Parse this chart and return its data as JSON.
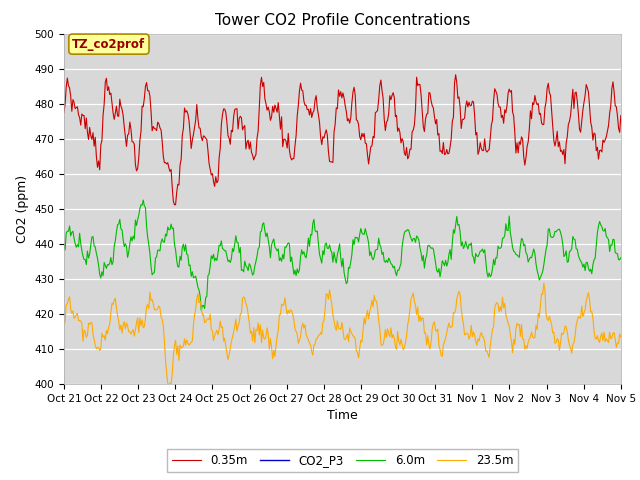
{
  "title": "Tower CO2 Profile Concentrations",
  "xlabel": "Time",
  "ylabel": "CO2 (ppm)",
  "ylim": [
    400,
    500
  ],
  "yticks": [
    400,
    410,
    420,
    430,
    440,
    450,
    460,
    470,
    480,
    490,
    500
  ],
  "plot_bg_color": "#d8d8d8",
  "fig_bg_color": "#ffffff",
  "legend_label": "TZ_co2prof",
  "legend_bg": "#ffff99",
  "legend_border": "#aa8800",
  "series": [
    {
      "label": "0.35m",
      "color": "#cc0000"
    },
    {
      "label": "CO2_P3",
      "color": "#0000cc"
    },
    {
      "label": "6.0m",
      "color": "#00bb00"
    },
    {
      "label": "23.5m",
      "color": "#ffaa00"
    }
  ],
  "xtick_labels": [
    "Oct 21",
    "Oct 22",
    "Oct 23",
    "Oct 24",
    "Oct 25",
    "Oct 26",
    "Oct 27",
    "Oct 28",
    "Oct 29",
    "Oct 30",
    "Oct 31",
    "Nov 1",
    "Nov 2",
    "Nov 3",
    "Nov 4",
    "Nov 5"
  ],
  "n_points": 500,
  "title_fontsize": 11,
  "axis_label_fontsize": 9,
  "tick_fontsize": 7.5
}
